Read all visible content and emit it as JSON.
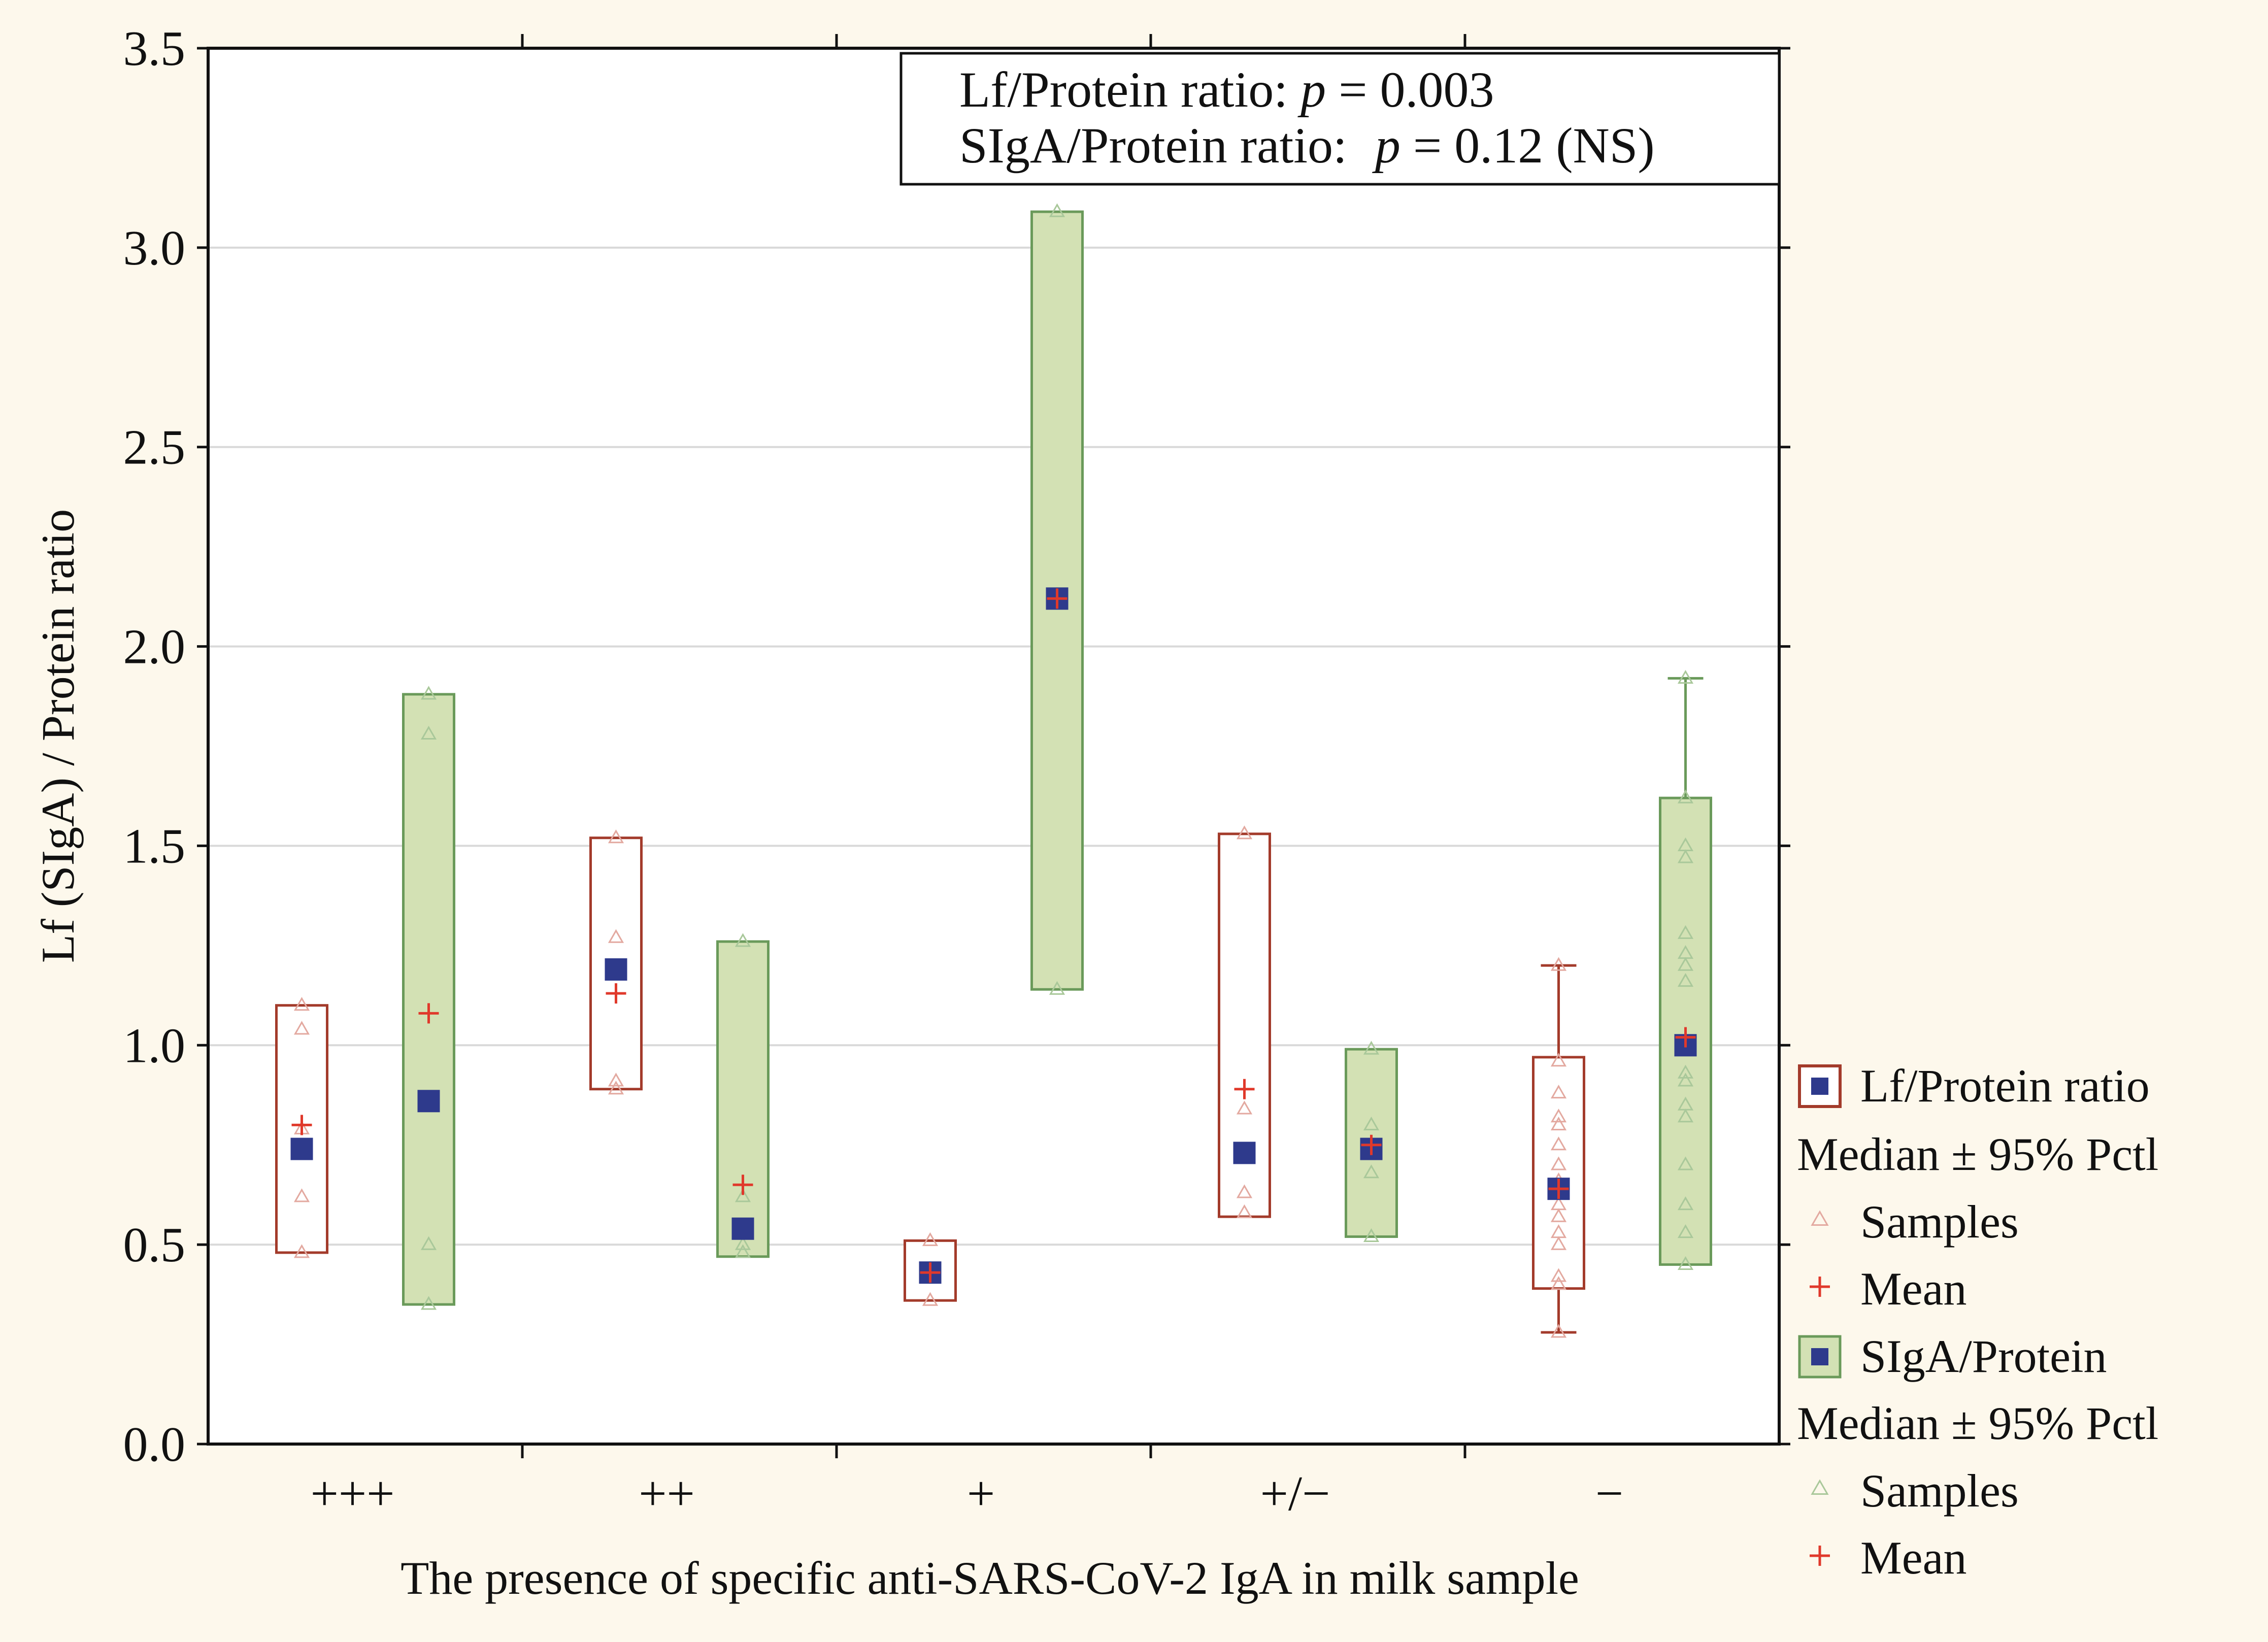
{
  "chart_data": {
    "type": "box",
    "title": "",
    "xlabel": "The presence of specific anti-SARS-CoV-2 IgA in milk sample",
    "ylabel": "Lf (SIgA) / Protein ratio",
    "ylim": [
      0,
      3.5
    ],
    "yticks": [
      "0.0",
      "0.5",
      "1.0",
      "1.5",
      "2.0",
      "2.5",
      "3.0",
      "3.5"
    ],
    "categories": [
      "+++",
      "++",
      "+",
      "+/−",
      "−"
    ],
    "annotations": {
      "line1_prefix": "Lf/Protein ratio: ",
      "line1_p": "p",
      "line1_value": " = 0.003",
      "line2_prefix": "SIgA/Protein ratio: ",
      "line2_p": "p",
      "line2_value": " = 0.12 (NS)"
    },
    "series": [
      {
        "name": "Lf/Protein ratio",
        "style": "outline",
        "color": "#a33b2b",
        "fill": "#ffffff",
        "median_color": "#2e3a8c",
        "mean_color": "#e0392b",
        "sample_color": "#e3a9a0",
        "groups": [
          {
            "median": 0.74,
            "mean": 0.8,
            "low": 0.48,
            "high": 1.1,
            "whisker_low": null,
            "whisker_high": null,
            "samples": [
              0.48,
              0.62,
              1.04,
              1.1,
              0.79
            ]
          },
          {
            "median": 1.19,
            "mean": 1.13,
            "low": 0.89,
            "high": 1.52,
            "whisker_low": null,
            "whisker_high": null,
            "samples": [
              0.89,
              0.91,
              1.19,
              1.27,
              1.52
            ]
          },
          {
            "median": 0.43,
            "mean": 0.43,
            "low": 0.36,
            "high": 0.51,
            "whisker_low": null,
            "whisker_high": null,
            "samples": [
              0.36,
              0.43,
              0.51
            ]
          },
          {
            "median": 0.73,
            "mean": 0.89,
            "low": 0.57,
            "high": 1.53,
            "whisker_low": null,
            "whisker_high": null,
            "samples": [
              0.58,
              0.63,
              0.84,
              1.53
            ]
          },
          {
            "median": 0.64,
            "mean": 0.64,
            "low": 0.39,
            "high": 0.97,
            "whisker_low": 0.28,
            "whisker_high": 1.2,
            "samples": [
              0.28,
              0.4,
              0.42,
              0.5,
              0.53,
              0.57,
              0.6,
              0.66,
              0.7,
              0.75,
              0.8,
              0.82,
              0.88,
              0.96,
              1.2
            ]
          }
        ]
      },
      {
        "name": "SIgA/Protein",
        "style": "filled",
        "color": "#6a9a5a",
        "fill": "#d3e1b4",
        "median_color": "#2e3a8c",
        "mean_color": "#e0392b",
        "sample_color": "#a9c89a",
        "groups": [
          {
            "median": 0.86,
            "mean": 1.08,
            "low": 0.35,
            "high": 1.88,
            "whisker_low": null,
            "whisker_high": null,
            "samples": [
              0.35,
              0.5,
              1.78,
              1.88
            ]
          },
          {
            "median": 0.54,
            "mean": 0.65,
            "low": 0.47,
            "high": 1.26,
            "whisker_low": null,
            "whisker_high": null,
            "samples": [
              0.48,
              0.5,
              0.62,
              1.26
            ]
          },
          {
            "median": 2.12,
            "mean": 2.12,
            "low": 1.14,
            "high": 3.09,
            "whisker_low": null,
            "whisker_high": null,
            "samples": [
              1.14,
              3.09
            ]
          },
          {
            "median": 0.74,
            "mean": 0.75,
            "low": 0.52,
            "high": 0.99,
            "whisker_low": null,
            "whisker_high": null,
            "samples": [
              0.52,
              0.68,
              0.8,
              0.99
            ]
          },
          {
            "median": 1.0,
            "mean": 1.02,
            "low": 0.45,
            "high": 1.62,
            "whisker_low": null,
            "whisker_high": 1.92,
            "samples": [
              0.45,
              0.53,
              0.6,
              0.7,
              0.82,
              0.85,
              0.91,
              0.93,
              1.0,
              1.16,
              1.2,
              1.23,
              1.28,
              1.47,
              1.5,
              1.62,
              1.92
            ]
          }
        ]
      }
    ],
    "legend": {
      "position": "right",
      "entries": [
        {
          "label": "Lf/Protein ratio",
          "kind": "box-outline"
        },
        {
          "label": "Median ± 95% Pctl",
          "kind": "text"
        },
        {
          "label": "Samples",
          "kind": "triangle-red"
        },
        {
          "label": "Mean",
          "kind": "plus"
        },
        {
          "label": "SIgA/Protein",
          "kind": "box-filled"
        },
        {
          "label": "Median ± 95% Pctl",
          "kind": "text"
        },
        {
          "label": "Samples",
          "kind": "triangle-green"
        },
        {
          "label": "Mean",
          "kind": "plus"
        }
      ]
    },
    "grid": true
  }
}
